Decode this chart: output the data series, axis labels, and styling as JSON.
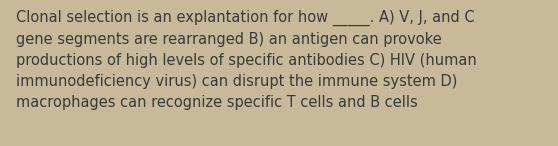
{
  "background_color": "#c8b99a",
  "text_color": "#3a3a3a",
  "text": "Clonal selection is an explantation for how _____. A) V, J, and C\ngene segments are rearranged B) an antigen can provoke\nproductions of high levels of specific antibodies C) HIV (human\nimmunodeficiency virus) can disrupt the immune system D)\nmacrophages can recognize specific T cells and B cells",
  "font_size": 10.5,
  "fig_width": 5.58,
  "fig_height": 1.46,
  "dpi": 100
}
